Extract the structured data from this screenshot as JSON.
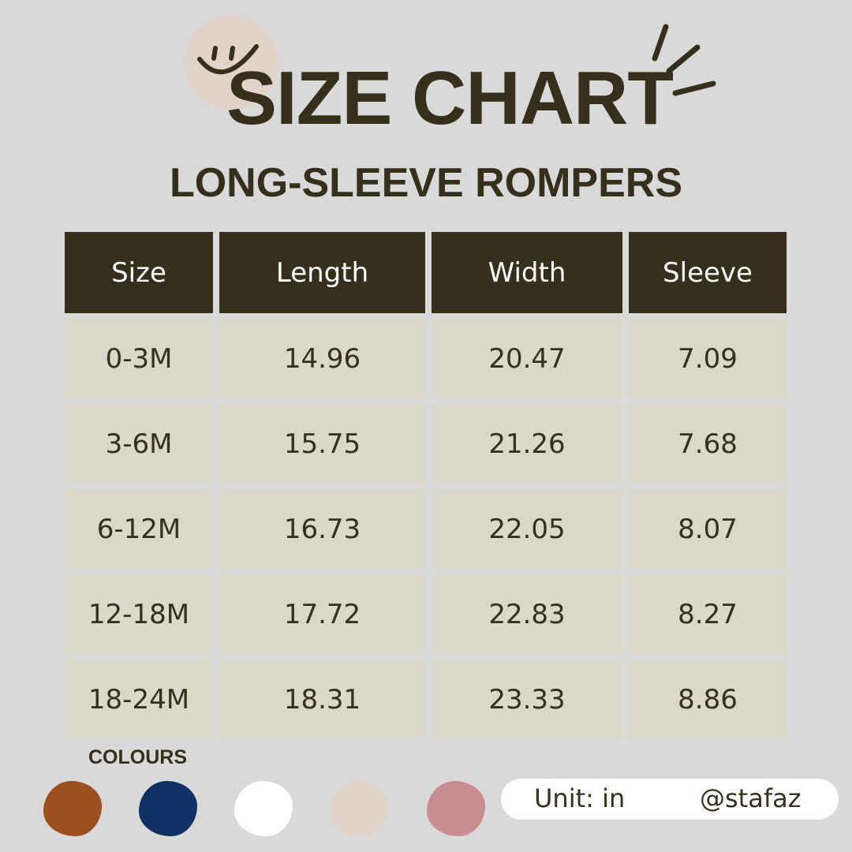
{
  "title": "SIZE CHART",
  "subtitle": "LONG-SLEEVE ROMPERS",
  "table": {
    "headers": [
      "Size",
      "Length",
      "Width",
      "Sleeve"
    ],
    "rows": [
      [
        "0-3M",
        "14.96",
        "20.47",
        "7.09"
      ],
      [
        "3-6M",
        "15.75",
        "21.26",
        "7.68"
      ],
      [
        "6-12M",
        "16.73",
        "22.05",
        "8.07"
      ],
      [
        "12-18M",
        "17.72",
        "22.83",
        "8.27"
      ],
      [
        "18-24M",
        "18.31",
        "23.33",
        "8.86"
      ]
    ]
  },
  "colours": {
    "label": "COLOURS",
    "swatches": [
      "#9c4f1f",
      "#0e3263",
      "#ffffff",
      "#e1d3ca",
      "#c98c93"
    ]
  },
  "footer": {
    "unit": "Unit: in",
    "handle": "@stafaz"
  },
  "colors": {
    "dark": "#352f1c",
    "cell": "#dad8c9",
    "background": "#d9d9d9"
  }
}
